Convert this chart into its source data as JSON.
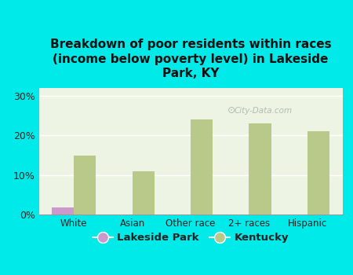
{
  "title": "Breakdown of poor residents within races\n(income below poverty level) in Lakeside\nPark, KY",
  "categories": [
    "White",
    "Asian",
    "Other race",
    "2+ races",
    "Hispanic"
  ],
  "lakeside_park_values": [
    1.8,
    0,
    0,
    0,
    0
  ],
  "kentucky_values": [
    15.0,
    11.0,
    24.0,
    23.0,
    21.0
  ],
  "lakeside_color": "#cc99cc",
  "kentucky_color": "#b8c98a",
  "background_outer": "#00eaea",
  "background_plot": "#eef4e4",
  "yticks": [
    0,
    10,
    20,
    30
  ],
  "ylim": [
    0,
    32
  ],
  "bar_width": 0.38,
  "legend_labels": [
    "Lakeside Park",
    "Kentucky"
  ],
  "watermark": "City-Data.com",
  "title_fontsize": 11
}
